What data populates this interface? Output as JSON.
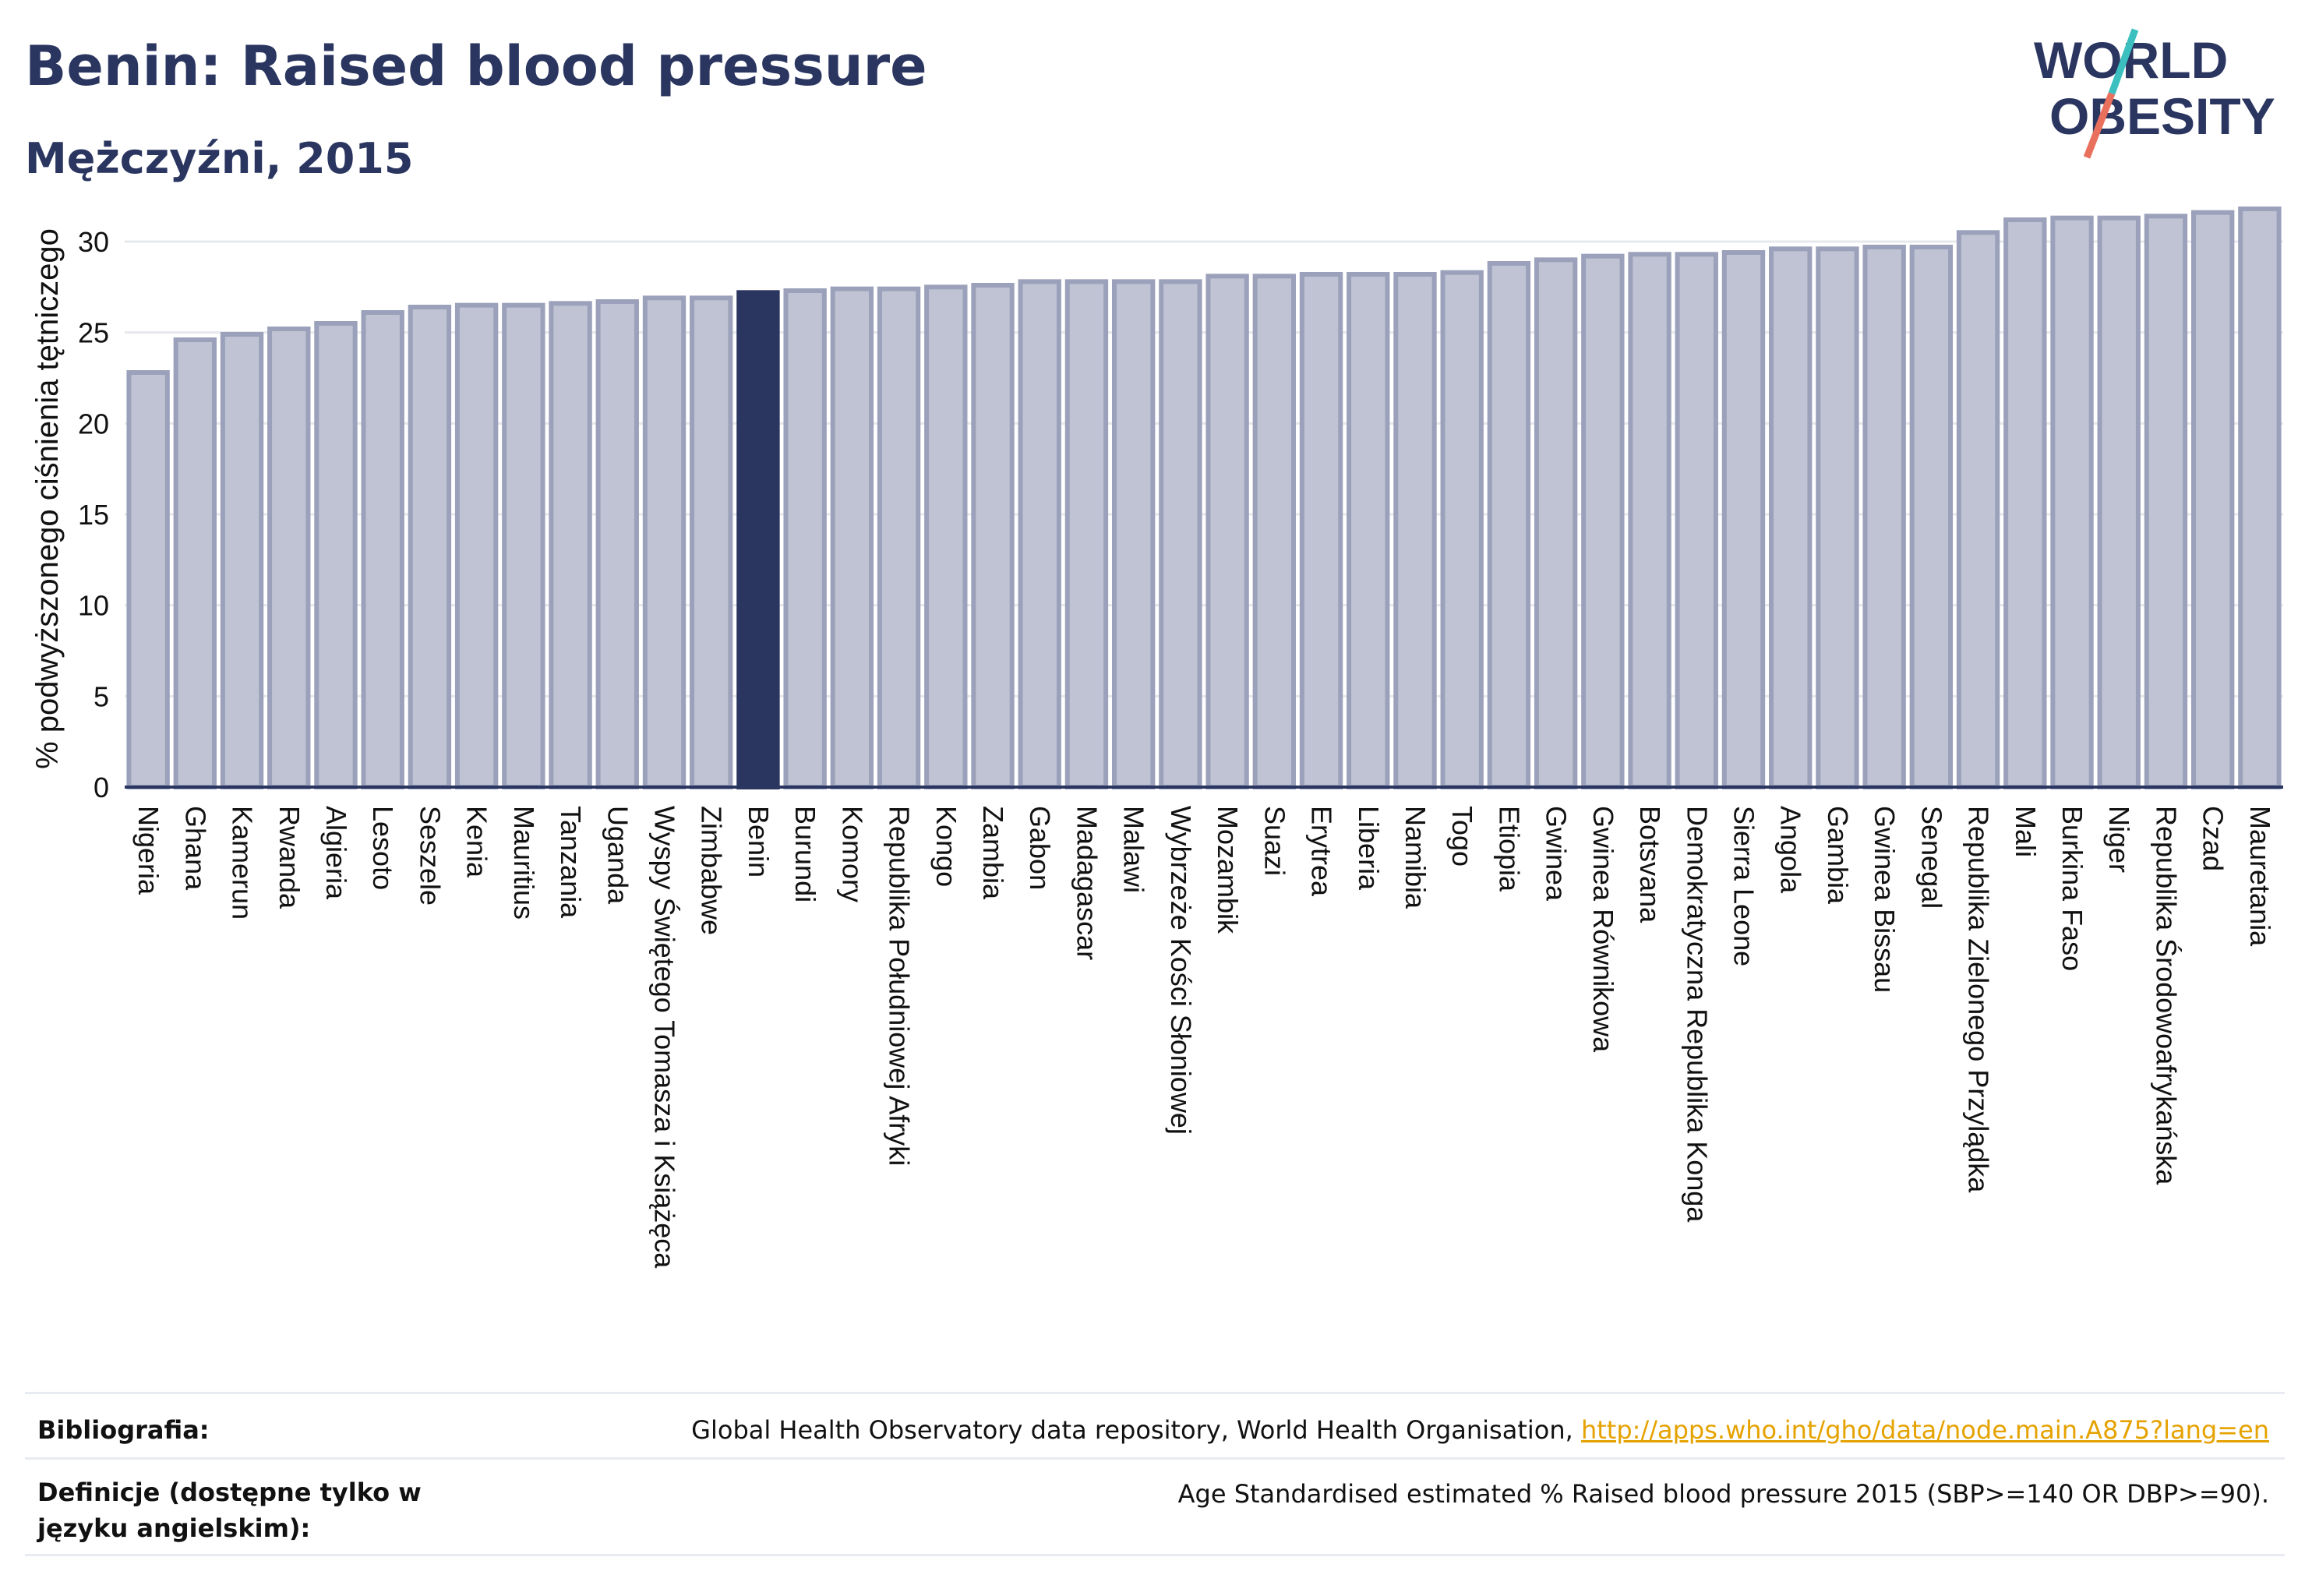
{
  "header": {
    "title": "Benin: Raised blood pressure",
    "subtitle": "Mężczyźni, 2015"
  },
  "logo": {
    "line1": "WORLD",
    "line2": "OBESITY"
  },
  "chart_data": {
    "type": "bar",
    "title": "Benin: Raised blood pressure",
    "subtitle": "Mężczyźni, 2015",
    "ylabel": "% podwyższonego ciśnienia tętniczego",
    "xlabel": "",
    "ylim": [
      0,
      33
    ],
    "yticks": [
      0,
      5,
      10,
      15,
      20,
      25,
      30
    ],
    "grid": true,
    "highlight": "Benin",
    "colors": {
      "bar": "#bfc3d3",
      "bar_border": "#9ba1ba",
      "highlight": "#2a3560"
    },
    "categories": [
      "Nigeria",
      "Ghana",
      "Kamerun",
      "Rwanda",
      "Algieria",
      "Lesoto",
      "Seszele",
      "Kenia",
      "Mauritius",
      "Tanzania",
      "Uganda",
      "Wyspy Świętego Tomasza i Książęca",
      "Zimbabwe",
      "Benin",
      "Burundi",
      "Komory",
      "Republika Południowej Afryki",
      "Kongo",
      "Zambia",
      "Gabon",
      "Madagascar",
      "Malawi",
      "Wybrzeże Kości Słoniowej",
      "Mozambik",
      "Suazi",
      "Erytrea",
      "Liberia",
      "Namibia",
      "Togo",
      "Etiopia",
      "Gwinea",
      "Gwinea Równikowa",
      "Botsvana",
      "Demokratyczna Republika Konga",
      "Sierra Leone",
      "Angola",
      "Gambia",
      "Gwinea Bissau",
      "Senegal",
      "Republika Zielonego Przylądka",
      "Mali",
      "Burkina Faso",
      "Niger",
      "Republika Środowoafrykańska",
      "Czad",
      "Mauretania"
    ],
    "values": [
      22.8,
      24.6,
      24.9,
      25.2,
      25.5,
      26.1,
      26.4,
      26.5,
      26.5,
      26.6,
      26.7,
      26.9,
      26.9,
      27.2,
      27.3,
      27.4,
      27.4,
      27.5,
      27.6,
      27.8,
      27.8,
      27.8,
      27.8,
      28.1,
      28.1,
      28.2,
      28.2,
      28.2,
      28.3,
      28.8,
      29.0,
      29.2,
      29.3,
      29.3,
      29.4,
      29.6,
      29.6,
      29.7,
      29.7,
      30.5,
      31.2,
      31.3,
      31.3,
      31.4,
      31.6,
      31.8
    ]
  },
  "footer": {
    "bibliography_label": "Bibliografia:",
    "bibliography_text": "Global Health Observatory data repository, World Health Organisation, ",
    "bibliography_link": "http://apps.who.int/gho/data/node.main.A875?lang=en",
    "definitions_label": "Definicje (dostępne tylko w języku angielskim):",
    "definitions_text": "Age Standardised estimated % Raised blood pressure 2015 (SBP>=140 OR DBP>=90)."
  }
}
